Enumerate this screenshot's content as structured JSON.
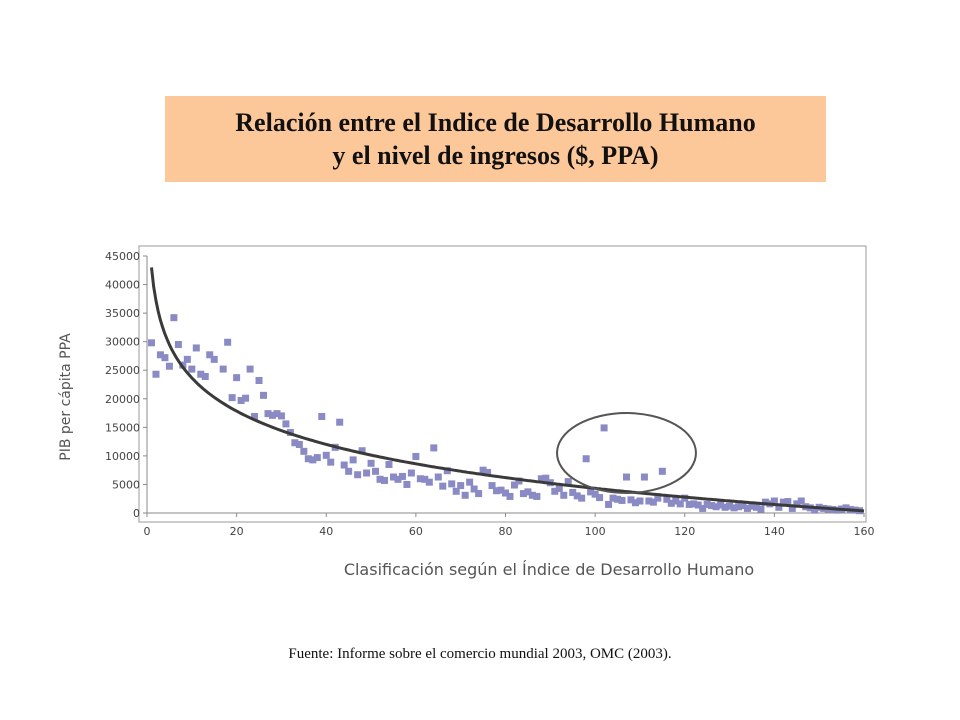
{
  "title": {
    "line1": "Relación entre el Indice de Desarrollo Humano",
    "line2": "y el nivel de ingresos ($, PPA)"
  },
  "source": "Fuente: Informe sobre el comercio mundial 2003, OMC (2003).",
  "colors": {
    "title_bg": "#fdc899",
    "points": "#8a8ac4",
    "trend": "#3a3a3a",
    "ellipse": "#555555"
  },
  "chart_data": {
    "type": "scatter",
    "title": "Relación entre el Indice de Desarrollo Humano y el nivel de ingresos ($, PPA)",
    "xlabel": "Clasificación según el Índice de Desarrollo Humano",
    "ylabel": "PIB per cápita PPA",
    "xlim": [
      0,
      160
    ],
    "ylim": [
      0,
      45000
    ],
    "xticks": [
      0,
      20,
      40,
      60,
      80,
      100,
      120,
      140,
      160
    ],
    "yticks": [
      0,
      5000,
      10000,
      15000,
      20000,
      25000,
      30000,
      35000,
      40000,
      45000
    ],
    "grid": false,
    "trendline": "logarithmic",
    "highlight_ellipse": {
      "center": [
        107,
        10500
      ],
      "radius_x": 15.5,
      "radius_y": 7000
    },
    "points": [
      [
        1,
        29800
      ],
      [
        2,
        24300
      ],
      [
        3,
        27700
      ],
      [
        4,
        27200
      ],
      [
        5,
        25700
      ],
      [
        6,
        34200
      ],
      [
        7,
        29500
      ],
      [
        8,
        25900
      ],
      [
        9,
        26900
      ],
      [
        10,
        25200
      ],
      [
        11,
        28900
      ],
      [
        12,
        24300
      ],
      [
        13,
        23900
      ],
      [
        14,
        27700
      ],
      [
        15,
        26900
      ],
      [
        17,
        25200
      ],
      [
        18,
        29900
      ],
      [
        19,
        20200
      ],
      [
        20,
        23700
      ],
      [
        21,
        19700
      ],
      [
        22,
        20100
      ],
      [
        23,
        25200
      ],
      [
        24,
        16900
      ],
      [
        25,
        23200
      ],
      [
        26,
        20600
      ],
      [
        27,
        17400
      ],
      [
        28,
        17100
      ],
      [
        29,
        17400
      ],
      [
        30,
        17000
      ],
      [
        31,
        15600
      ],
      [
        32,
        14100
      ],
      [
        33,
        12300
      ],
      [
        34,
        12000
      ],
      [
        35,
        10800
      ],
      [
        36,
        9500
      ],
      [
        37,
        9300
      ],
      [
        38,
        9700
      ],
      [
        39,
        16900
      ],
      [
        40,
        10100
      ],
      [
        41,
        8900
      ],
      [
        42,
        11500
      ],
      [
        43,
        15900
      ],
      [
        44,
        8400
      ],
      [
        45,
        7300
      ],
      [
        46,
        9300
      ],
      [
        47,
        6700
      ],
      [
        48,
        10900
      ],
      [
        49,
        7000
      ],
      [
        50,
        8700
      ],
      [
        51,
        7300
      ],
      [
        52,
        5900
      ],
      [
        53,
        5700
      ],
      [
        54,
        8500
      ],
      [
        55,
        6300
      ],
      [
        56,
        5900
      ],
      [
        57,
        6400
      ],
      [
        58,
        5000
      ],
      [
        59,
        7000
      ],
      [
        60,
        9900
      ],
      [
        61,
        6000
      ],
      [
        62,
        5900
      ],
      [
        63,
        5400
      ],
      [
        64,
        11400
      ],
      [
        65,
        6300
      ],
      [
        66,
        4700
      ],
      [
        67,
        7400
      ],
      [
        68,
        5100
      ],
      [
        69,
        3800
      ],
      [
        70,
        4800
      ],
      [
        71,
        3100
      ],
      [
        72,
        5400
      ],
      [
        73,
        4200
      ],
      [
        74,
        3400
      ],
      [
        75,
        7500
      ],
      [
        76,
        7100
      ],
      [
        77,
        4800
      ],
      [
        78,
        3900
      ],
      [
        79,
        4000
      ],
      [
        80,
        3500
      ],
      [
        81,
        2900
      ],
      [
        82,
        4900
      ],
      [
        83,
        5600
      ],
      [
        84,
        3400
      ],
      [
        85,
        3700
      ],
      [
        86,
        3100
      ],
      [
        87,
        2900
      ],
      [
        88,
        6000
      ],
      [
        89,
        6100
      ],
      [
        90,
        5300
      ],
      [
        91,
        3800
      ],
      [
        92,
        4300
      ],
      [
        93,
        3100
      ],
      [
        94,
        5500
      ],
      [
        95,
        3600
      ],
      [
        96,
        3000
      ],
      [
        97,
        2600
      ],
      [
        98,
        9500
      ],
      [
        99,
        3700
      ],
      [
        100,
        3300
      ],
      [
        101,
        2700
      ],
      [
        102,
        14900
      ],
      [
        103,
        1500
      ],
      [
        104,
        2600
      ],
      [
        105,
        2400
      ],
      [
        106,
        2200
      ],
      [
        107,
        6300
      ],
      [
        108,
        2300
      ],
      [
        109,
        1800
      ],
      [
        110,
        2100
      ],
      [
        111,
        6300
      ],
      [
        112,
        2100
      ],
      [
        113,
        1900
      ],
      [
        114,
        2600
      ],
      [
        115,
        7300
      ],
      [
        116,
        2400
      ],
      [
        117,
        1700
      ],
      [
        118,
        2100
      ],
      [
        119,
        1600
      ],
      [
        120,
        2600
      ],
      [
        121,
        1500
      ],
      [
        122,
        1600
      ],
      [
        123,
        1400
      ],
      [
        124,
        800
      ],
      [
        125,
        1500
      ],
      [
        126,
        1300
      ],
      [
        127,
        1100
      ],
      [
        128,
        1400
      ],
      [
        129,
        1000
      ],
      [
        130,
        1200
      ],
      [
        131,
        900
      ],
      [
        132,
        1100
      ],
      [
        133,
        1300
      ],
      [
        134,
        800
      ],
      [
        135,
        1200
      ],
      [
        136,
        1000
      ],
      [
        137,
        700
      ],
      [
        138,
        1900
      ],
      [
        139,
        1600
      ],
      [
        140,
        2100
      ],
      [
        141,
        1000
      ],
      [
        142,
        1900
      ],
      [
        143,
        2000
      ],
      [
        144,
        800
      ],
      [
        145,
        1600
      ],
      [
        146,
        2100
      ],
      [
        147,
        1100
      ],
      [
        148,
        900
      ],
      [
        149,
        500
      ],
      [
        150,
        1000
      ],
      [
        151,
        800
      ],
      [
        152,
        700
      ],
      [
        153,
        600
      ],
      [
        154,
        500
      ],
      [
        155,
        700
      ],
      [
        156,
        900
      ],
      [
        157,
        600
      ],
      [
        158,
        500
      ],
      [
        159,
        400
      ]
    ]
  }
}
